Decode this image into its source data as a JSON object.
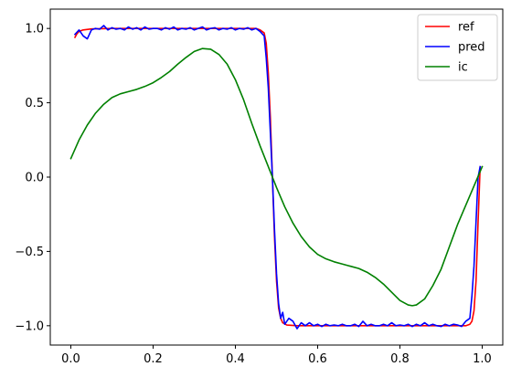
{
  "chart_data": {
    "type": "line",
    "title": "",
    "xlabel": "",
    "ylabel": "",
    "xlim": [
      -0.05,
      1.05
    ],
    "ylim": [
      -1.13,
      1.13
    ],
    "grid": false,
    "legend_position": "top-right",
    "x_ticks": [
      0.0,
      0.2,
      0.4,
      0.6,
      0.8,
      1.0
    ],
    "x_tick_labels": [
      "0.0",
      "0.2",
      "0.4",
      "0.6",
      "0.8",
      "1.0"
    ],
    "y_ticks": [
      1.0,
      0.5,
      0.0,
      -0.5,
      -1.0
    ],
    "y_tick_labels": [
      "1.0",
      "0.5",
      "0.0",
      "−0.5",
      "−1.0"
    ],
    "series": [
      {
        "name": "ref",
        "color": "#ff0000",
        "points": [
          [
            0.01,
            0.94
          ],
          [
            0.015,
            0.965
          ],
          [
            0.02,
            0.98
          ],
          [
            0.03,
            0.99
          ],
          [
            0.05,
            0.997
          ],
          [
            0.1,
            1.0
          ],
          [
            0.2,
            1.0
          ],
          [
            0.3,
            1.0
          ],
          [
            0.4,
            1.0
          ],
          [
            0.45,
            1.0
          ],
          [
            0.46,
            0.99
          ],
          [
            0.47,
            0.97
          ],
          [
            0.475,
            0.9
          ],
          [
            0.48,
            0.7
          ],
          [
            0.485,
            0.4
          ],
          [
            0.49,
            0.0
          ],
          [
            0.495,
            -0.4
          ],
          [
            0.5,
            -0.7
          ],
          [
            0.505,
            -0.88
          ],
          [
            0.51,
            -0.95
          ],
          [
            0.515,
            -0.98
          ],
          [
            0.525,
            -0.995
          ],
          [
            0.55,
            -1.0
          ],
          [
            0.7,
            -1.0
          ],
          [
            0.9,
            -1.0
          ],
          [
            0.96,
            -1.0
          ],
          [
            0.97,
            -0.99
          ],
          [
            0.975,
            -0.97
          ],
          [
            0.98,
            -0.9
          ],
          [
            0.985,
            -0.7
          ],
          [
            0.99,
            -0.3
          ],
          [
            0.995,
            0.07
          ]
        ]
      },
      {
        "name": "pred",
        "color": "#0000ff",
        "points": [
          [
            0.01,
            0.96
          ],
          [
            0.02,
            0.99
          ],
          [
            0.03,
            0.95
          ],
          [
            0.04,
            0.93
          ],
          [
            0.05,
            0.99
          ],
          [
            0.06,
            1.0
          ],
          [
            0.07,
            0.995
          ],
          [
            0.08,
            1.02
          ],
          [
            0.09,
            0.99
          ],
          [
            0.1,
            1.005
          ],
          [
            0.11,
            0.995
          ],
          [
            0.12,
            1.0
          ],
          [
            0.13,
            0.99
          ],
          [
            0.14,
            1.01
          ],
          [
            0.15,
            0.995
          ],
          [
            0.16,
            1.005
          ],
          [
            0.17,
            0.99
          ],
          [
            0.18,
            1.01
          ],
          [
            0.19,
            0.995
          ],
          [
            0.2,
            1.0
          ],
          [
            0.21,
            1.0
          ],
          [
            0.22,
            0.99
          ],
          [
            0.23,
            1.005
          ],
          [
            0.24,
            0.995
          ],
          [
            0.25,
            1.01
          ],
          [
            0.26,
            0.99
          ],
          [
            0.27,
            1.0
          ],
          [
            0.28,
            0.995
          ],
          [
            0.29,
            1.005
          ],
          [
            0.3,
            0.99
          ],
          [
            0.31,
            1.0
          ],
          [
            0.32,
            1.01
          ],
          [
            0.33,
            0.99
          ],
          [
            0.34,
            1.0
          ],
          [
            0.35,
            1.005
          ],
          [
            0.36,
            0.99
          ],
          [
            0.37,
            1.0
          ],
          [
            0.38,
            0.995
          ],
          [
            0.39,
            1.005
          ],
          [
            0.4,
            0.99
          ],
          [
            0.41,
            1.0
          ],
          [
            0.42,
            0.995
          ],
          [
            0.43,
            1.005
          ],
          [
            0.44,
            0.99
          ],
          [
            0.45,
            1.0
          ],
          [
            0.46,
            0.98
          ],
          [
            0.47,
            0.95
          ],
          [
            0.475,
            0.8
          ],
          [
            0.48,
            0.6
          ],
          [
            0.485,
            0.3
          ],
          [
            0.49,
            0.0
          ],
          [
            0.495,
            -0.35
          ],
          [
            0.5,
            -0.65
          ],
          [
            0.505,
            -0.85
          ],
          [
            0.51,
            -0.95
          ],
          [
            0.515,
            -0.91
          ],
          [
            0.52,
            -0.99
          ],
          [
            0.53,
            -0.95
          ],
          [
            0.54,
            -0.97
          ],
          [
            0.55,
            -1.02
          ],
          [
            0.56,
            -0.98
          ],
          [
            0.57,
            -1.0
          ],
          [
            0.58,
            -0.98
          ],
          [
            0.59,
            -1.0
          ],
          [
            0.6,
            -0.99
          ],
          [
            0.61,
            -1.005
          ],
          [
            0.62,
            -0.99
          ],
          [
            0.63,
            -1.0
          ],
          [
            0.64,
            -0.995
          ],
          [
            0.65,
            -1.0
          ],
          [
            0.66,
            -0.99
          ],
          [
            0.67,
            -1.0
          ],
          [
            0.68,
            -1.0
          ],
          [
            0.69,
            -0.99
          ],
          [
            0.7,
            -1.005
          ],
          [
            0.71,
            -0.97
          ],
          [
            0.72,
            -1.0
          ],
          [
            0.73,
            -0.99
          ],
          [
            0.74,
            -1.0
          ],
          [
            0.75,
            -1.0
          ],
          [
            0.76,
            -0.99
          ],
          [
            0.77,
            -1.0
          ],
          [
            0.78,
            -0.98
          ],
          [
            0.79,
            -1.0
          ],
          [
            0.8,
            -0.995
          ],
          [
            0.81,
            -1.0
          ],
          [
            0.82,
            -0.99
          ],
          [
            0.83,
            -1.005
          ],
          [
            0.84,
            -0.99
          ],
          [
            0.85,
            -1.0
          ],
          [
            0.86,
            -0.98
          ],
          [
            0.87,
            -1.0
          ],
          [
            0.88,
            -0.99
          ],
          [
            0.89,
            -1.0
          ],
          [
            0.9,
            -1.005
          ],
          [
            0.91,
            -0.99
          ],
          [
            0.92,
            -1.0
          ],
          [
            0.93,
            -0.99
          ],
          [
            0.94,
            -0.995
          ],
          [
            0.95,
            -1.005
          ],
          [
            0.96,
            -0.97
          ],
          [
            0.97,
            -0.95
          ],
          [
            0.975,
            -0.8
          ],
          [
            0.98,
            -0.6
          ],
          [
            0.985,
            -0.3
          ],
          [
            0.99,
            0.0
          ],
          [
            0.995,
            0.07
          ]
        ]
      },
      {
        "name": "ic",
        "color": "#008000",
        "points": [
          [
            0.0,
            0.125
          ],
          [
            0.02,
            0.25
          ],
          [
            0.04,
            0.35
          ],
          [
            0.06,
            0.43
          ],
          [
            0.08,
            0.49
          ],
          [
            0.1,
            0.535
          ],
          [
            0.12,
            0.56
          ],
          [
            0.14,
            0.575
          ],
          [
            0.16,
            0.59
          ],
          [
            0.18,
            0.61
          ],
          [
            0.2,
            0.635
          ],
          [
            0.22,
            0.67
          ],
          [
            0.24,
            0.71
          ],
          [
            0.26,
            0.76
          ],
          [
            0.28,
            0.805
          ],
          [
            0.3,
            0.845
          ],
          [
            0.32,
            0.865
          ],
          [
            0.34,
            0.86
          ],
          [
            0.36,
            0.825
          ],
          [
            0.38,
            0.76
          ],
          [
            0.4,
            0.655
          ],
          [
            0.42,
            0.52
          ],
          [
            0.44,
            0.36
          ],
          [
            0.46,
            0.21
          ],
          [
            0.48,
            0.07
          ],
          [
            0.5,
            -0.07
          ],
          [
            0.52,
            -0.2
          ],
          [
            0.54,
            -0.31
          ],
          [
            0.56,
            -0.4
          ],
          [
            0.58,
            -0.47
          ],
          [
            0.6,
            -0.52
          ],
          [
            0.62,
            -0.55
          ],
          [
            0.64,
            -0.57
          ],
          [
            0.66,
            -0.585
          ],
          [
            0.68,
            -0.6
          ],
          [
            0.7,
            -0.615
          ],
          [
            0.72,
            -0.64
          ],
          [
            0.74,
            -0.675
          ],
          [
            0.76,
            -0.72
          ],
          [
            0.78,
            -0.775
          ],
          [
            0.8,
            -0.83
          ],
          [
            0.82,
            -0.86
          ],
          [
            0.83,
            -0.865
          ],
          [
            0.84,
            -0.86
          ],
          [
            0.86,
            -0.82
          ],
          [
            0.88,
            -0.73
          ],
          [
            0.9,
            -0.62
          ],
          [
            0.92,
            -0.47
          ],
          [
            0.94,
            -0.32
          ],
          [
            0.96,
            -0.19
          ],
          [
            0.98,
            -0.06
          ],
          [
            1.0,
            0.07
          ]
        ]
      }
    ]
  }
}
